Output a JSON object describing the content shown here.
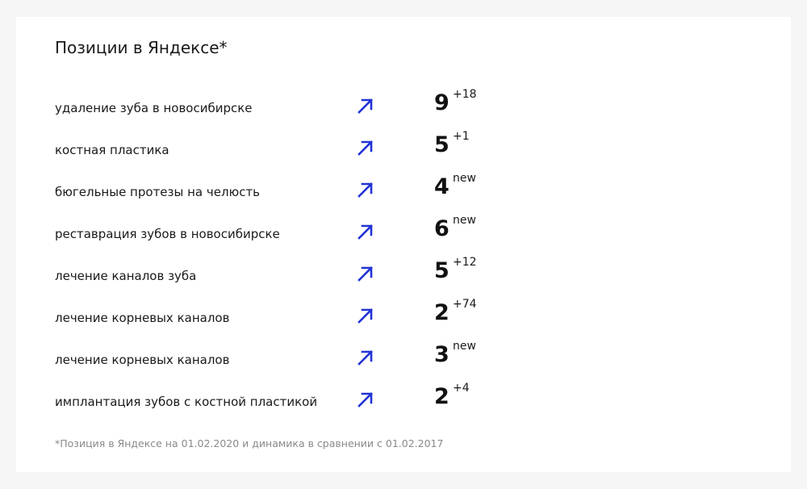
{
  "title": "Позиции в Яндексе*",
  "accent_color": "#2233d6",
  "arrow_icon": "trend-up-arrow-icon",
  "rows": [
    {
      "query": "удаление зуба в новосибирске",
      "position": "9",
      "change": "+18"
    },
    {
      "query": "костная пластика",
      "position": "5",
      "change": "+1"
    },
    {
      "query": "бюгельные протезы на челюсть",
      "position": "4",
      "change": "new"
    },
    {
      "query": "реставрация зубов в новосибирске",
      "position": "6",
      "change": "new"
    },
    {
      "query": "лечение каналов зуба",
      "position": "5",
      "change": "+12"
    },
    {
      "query": "лечение корневых каналов",
      "position": "2",
      "change": "+74"
    },
    {
      "query": "лечение корневых каналов",
      "position": "3",
      "change": "new"
    },
    {
      "query": "имплантация зубов с костной пластикой",
      "position": "2",
      "change": "+4"
    }
  ],
  "footnote": "*Позиция в Яндексе на 01.02.2020 и динамика в сравнении с 01.02.2017"
}
